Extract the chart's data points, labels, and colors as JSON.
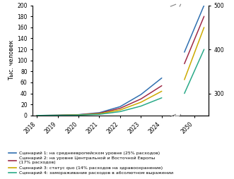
{
  "years_main": [
    2018,
    2019,
    2020,
    2021,
    2022,
    2023,
    2024
  ],
  "scenarios": {
    "s1": {
      "name": "Сценарий 1: на среднеевропейском уровне (25% расходов)",
      "color": "#3070b0",
      "values_main": [
        0.0,
        0.5,
        1.5,
        5,
        16,
        38,
        68
      ],
      "val_2050_lo": 115,
      "val_2050_hi": 200
    },
    "s2": {
      "name": "Сценарий 2: на уровне Центральной и Восточной Европы\n(17% расходов)",
      "color": "#9e2a47",
      "values_main": [
        0.0,
        0.4,
        1.2,
        4,
        13,
        30,
        54
      ],
      "val_2050_lo": 94,
      "val_2050_hi": 180
    },
    "s3": {
      "name": "Сценарий 3: статус quo (14% расходов на здравоохранение)",
      "color": "#ccaa00",
      "values_main": [
        0.0,
        0.3,
        1.0,
        3,
        10,
        24,
        44
      ],
      "val_2050_lo": 65,
      "val_2050_hi": 160
    },
    "s4": {
      "name": "Сценарий 4: замораживание расходов в абсолютном выражении",
      "color": "#2aaa88",
      "values_main": [
        0.0,
        0.2,
        0.7,
        2,
        7,
        17,
        32
      ],
      "val_2050_lo": 40,
      "val_2050_hi": 120
    }
  },
  "yticks_left": [
    0,
    20,
    40,
    60,
    80,
    100,
    120,
    140,
    160,
    180,
    200
  ],
  "yticks_right_pos": [
    40,
    120,
    200
  ],
  "yticks_right_labels": [
    "300",
    "400",
    "500"
  ],
  "ylabel": "Тыс. человек"
}
